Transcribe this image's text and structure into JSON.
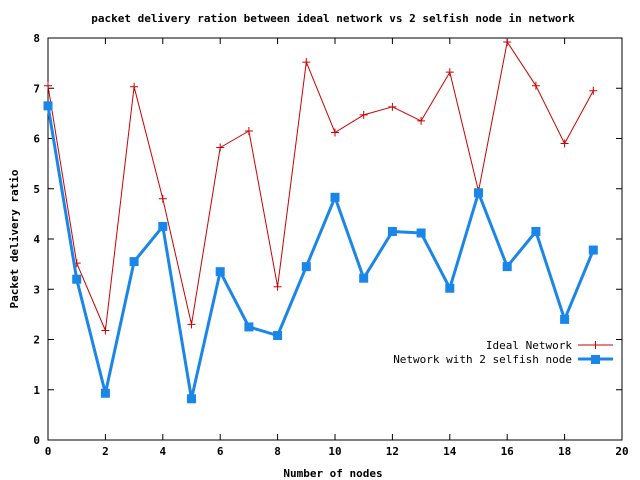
{
  "chart_data": {
    "type": "line",
    "title": "packet delivery ration between ideal network vs 2 selfish node in network",
    "xlabel": "Number of nodes",
    "ylabel": "Packet delivery ratio",
    "xlim": [
      0,
      20
    ],
    "ylim": [
      0,
      8
    ],
    "x_ticks": [
      0,
      2,
      4,
      6,
      8,
      10,
      12,
      14,
      16,
      18,
      20
    ],
    "y_ticks": [
      0,
      1,
      2,
      3,
      4,
      5,
      6,
      7,
      8
    ],
    "grid": false,
    "legend": "middle-right",
    "series": [
      {
        "name": "Ideal Network",
        "color": "#cc0000",
        "marker": "plus",
        "x": [
          0,
          1,
          2,
          3,
          4,
          5,
          6,
          7,
          8,
          9,
          10,
          11,
          12,
          13,
          14,
          15,
          16,
          17,
          18,
          19
        ],
        "y": [
          7.05,
          3.52,
          2.18,
          7.03,
          4.8,
          2.3,
          5.82,
          6.15,
          3.05,
          7.52,
          6.12,
          6.47,
          6.63,
          6.35,
          7.32,
          4.95,
          7.92,
          7.05,
          5.9,
          6.95
        ]
      },
      {
        "name": "Network with 2 selfish node",
        "color": "#1a86e8",
        "marker": "square",
        "x": [
          0,
          1,
          2,
          3,
          4,
          5,
          6,
          7,
          8,
          9,
          10,
          11,
          12,
          13,
          14,
          15,
          16,
          17,
          18,
          19
        ],
        "y": [
          6.65,
          3.2,
          0.93,
          3.55,
          4.25,
          0.82,
          3.35,
          2.25,
          2.08,
          3.45,
          4.83,
          3.22,
          4.15,
          4.12,
          3.02,
          4.92,
          3.45,
          4.15,
          2.4,
          3.78
        ]
      }
    ]
  }
}
